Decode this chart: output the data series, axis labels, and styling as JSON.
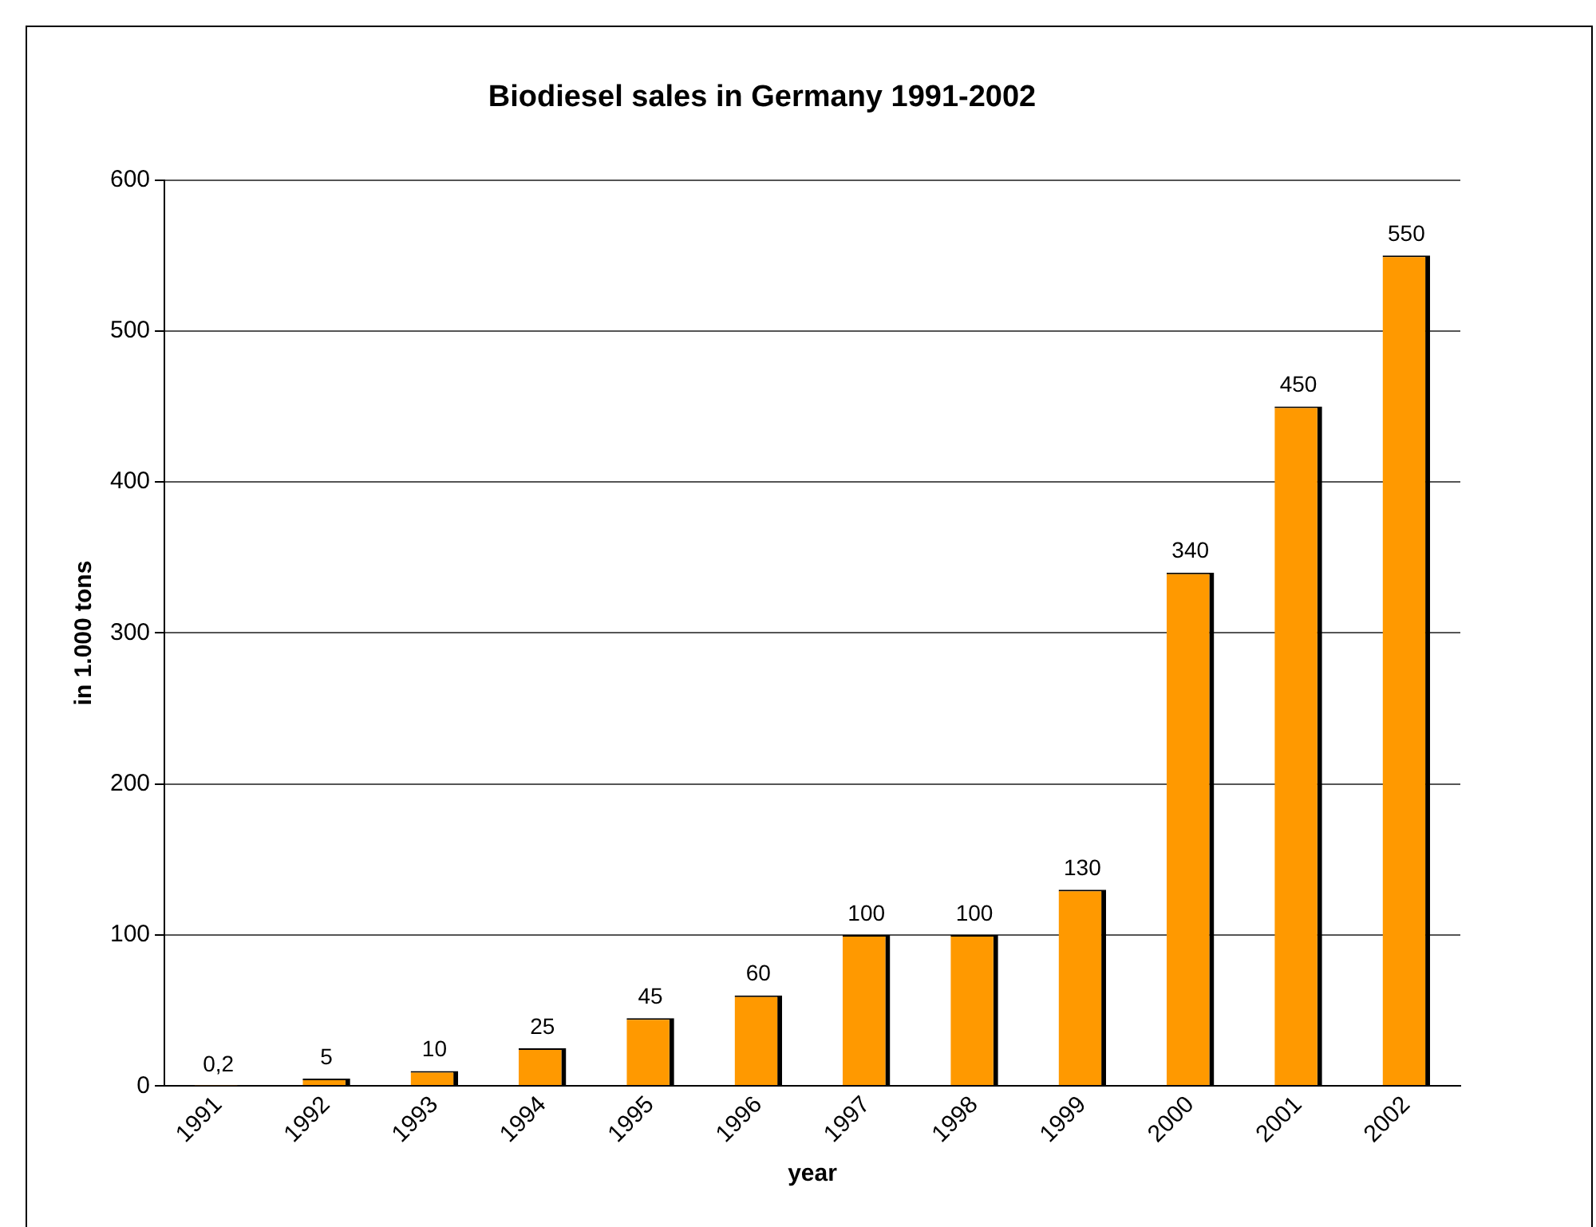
{
  "chart_data": {
    "type": "bar",
    "title": "Biodiesel sales in Germany 1991-2002",
    "xlabel": "year",
    "ylabel": "in 1.000 tons",
    "categories": [
      "1991",
      "1992",
      "1993",
      "1994",
      "1995",
      "1996",
      "1997",
      "1998",
      "1999",
      "2000",
      "2001",
      "2002"
    ],
    "values": [
      0.2,
      5,
      10,
      25,
      45,
      60,
      100,
      100,
      130,
      340,
      450,
      550
    ],
    "value_labels": [
      "0,2",
      "5",
      "10",
      "25",
      "45",
      "60",
      "100",
      "100",
      "130",
      "340",
      "450",
      "550"
    ],
    "color": "#ff9900",
    "ylim": [
      0,
      600
    ],
    "yticks": [
      0,
      100,
      200,
      300,
      400,
      500,
      600
    ],
    "grid": "y",
    "legend": false
  }
}
